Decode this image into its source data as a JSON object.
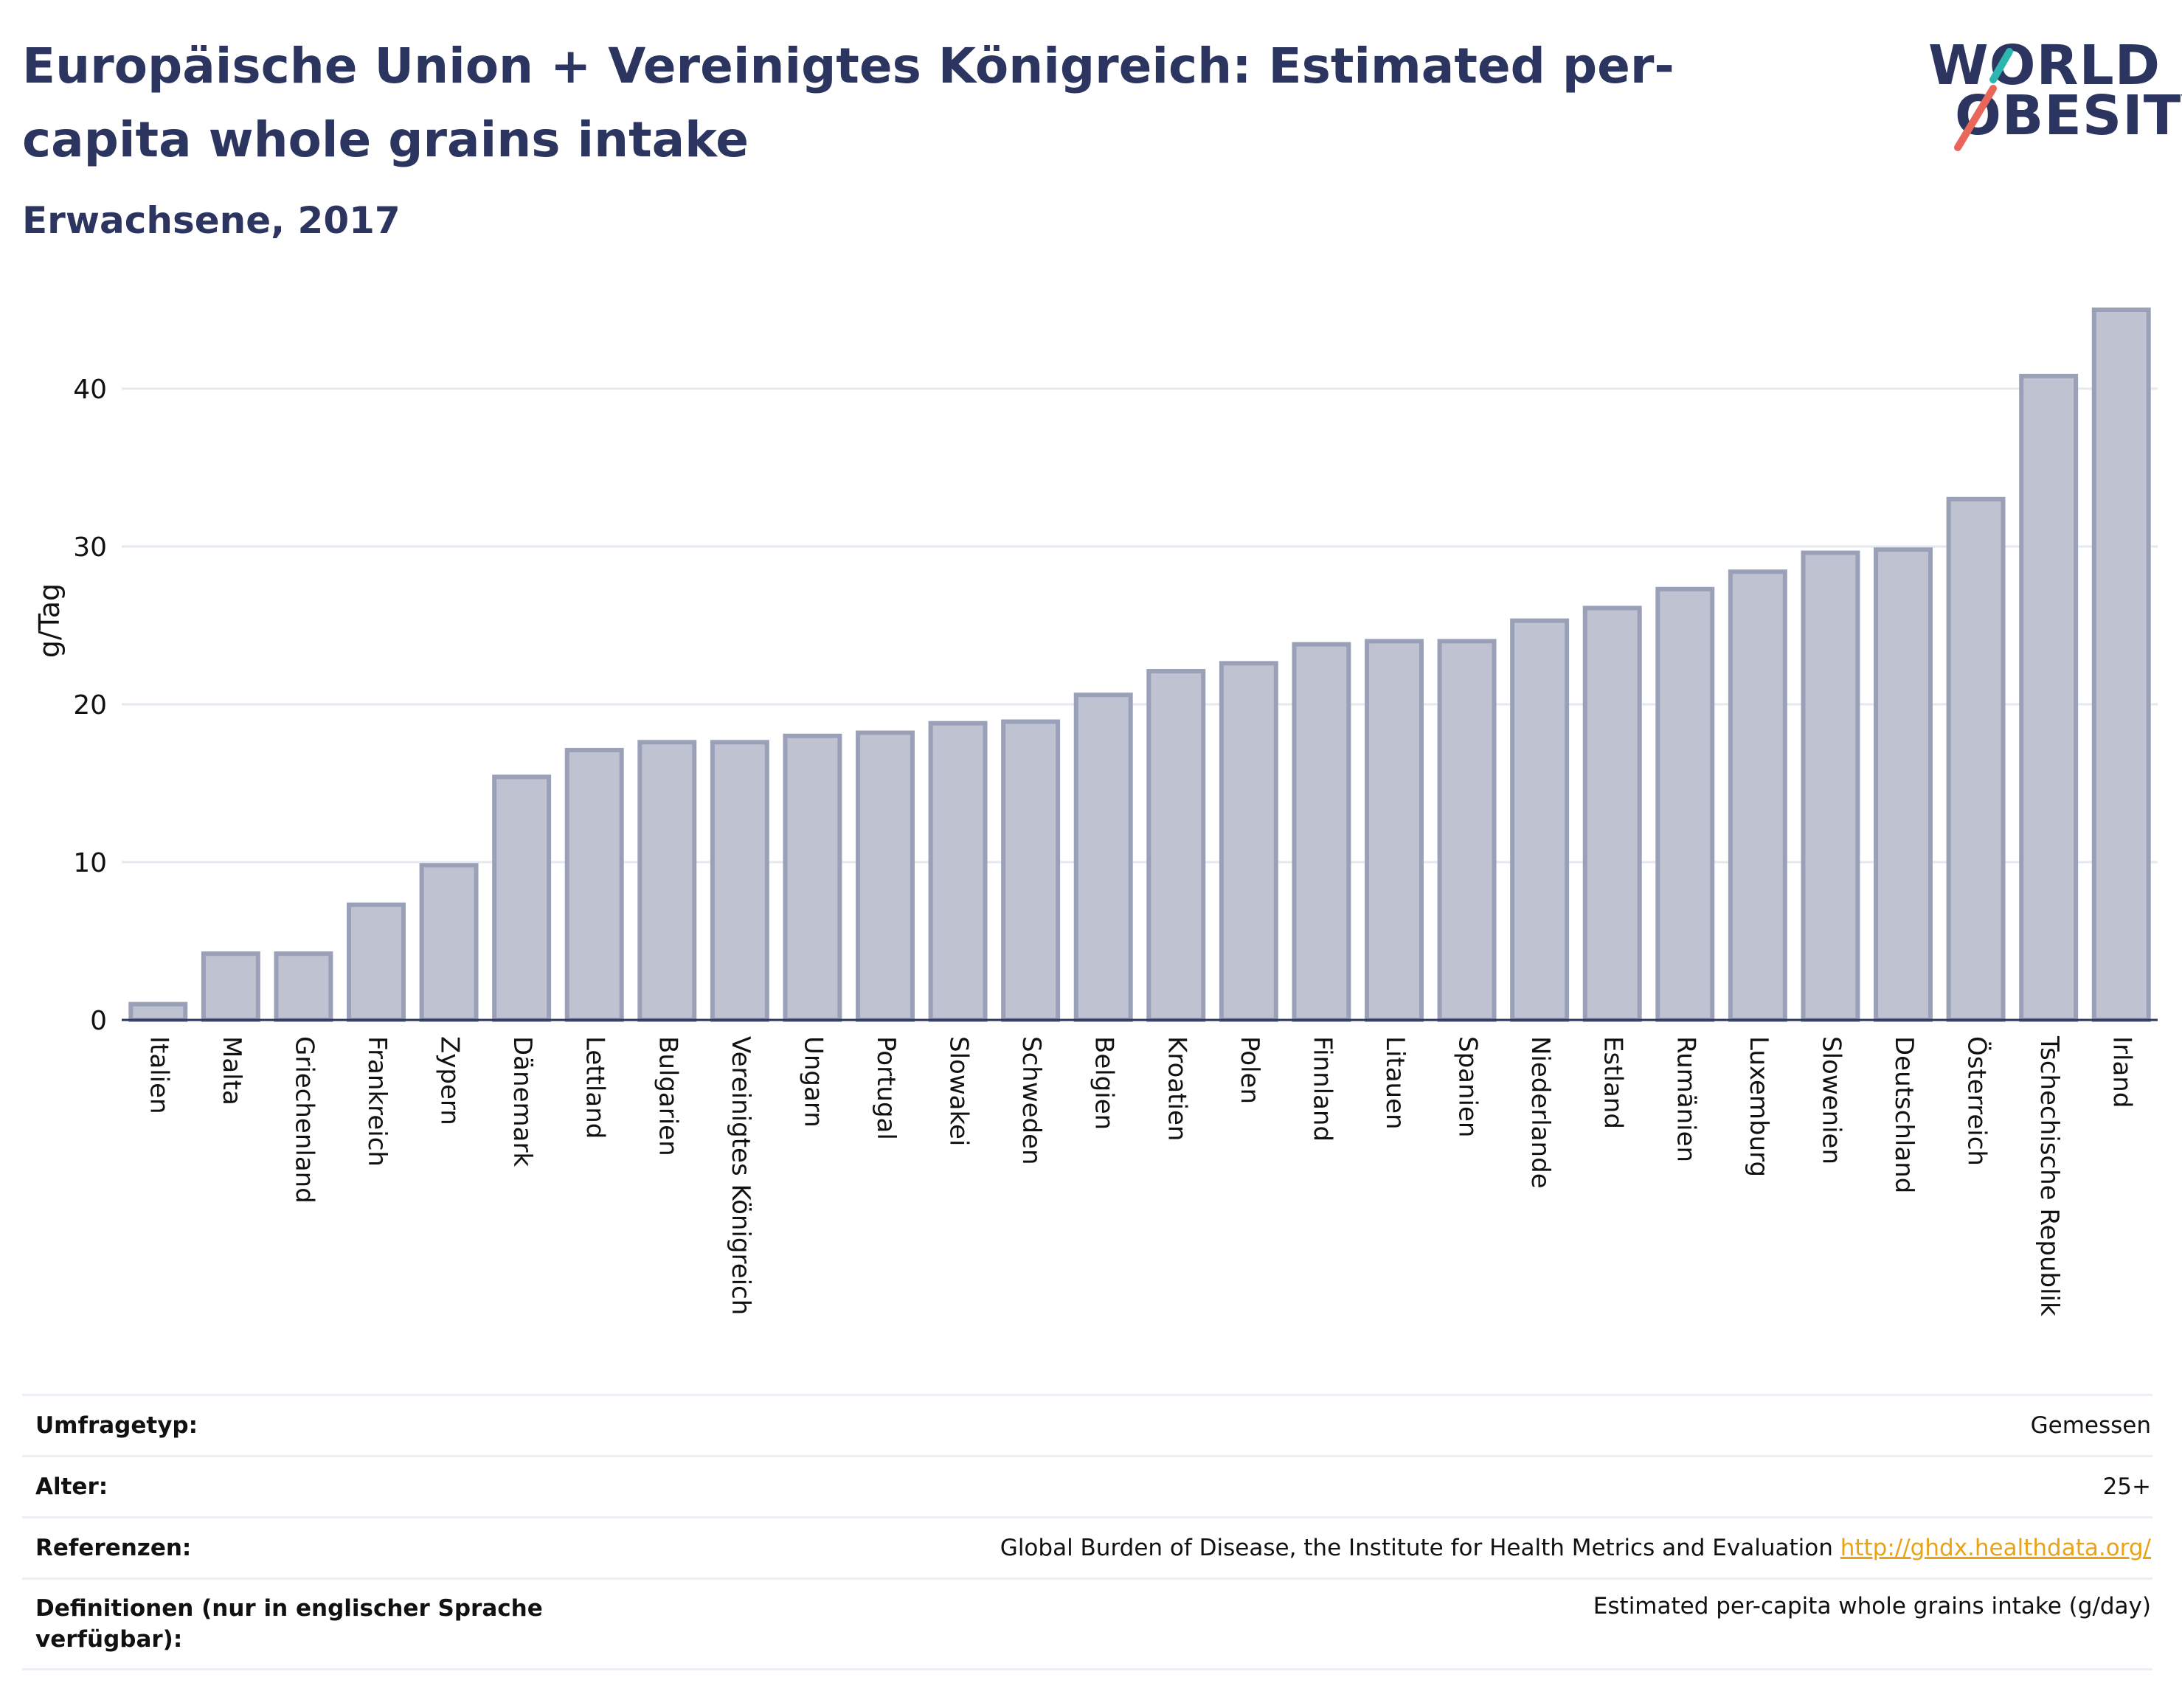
{
  "header": {
    "title": "Europäische Union + Vereinigtes Königreich: Estimated per-capita whole grains intake",
    "subtitle": "Erwachsene, 2017"
  },
  "logo": {
    "line1": "WORLD",
    "line2": "OBESITY",
    "accent_teal": "#2bb7b0",
    "accent_coral": "#e8675a"
  },
  "colors": {
    "bar_fill": "#bfc3d1",
    "bar_stroke": "#9aa0b8",
    "text": "#2b3560",
    "grid": "#e6e8ef",
    "link": "#e8a317"
  },
  "chart_data": {
    "type": "bar",
    "ylabel": "g/Tag",
    "xlabel": "",
    "ylim": [
      0,
      45
    ],
    "yticks": [
      0,
      10,
      20,
      30,
      40
    ],
    "grid": true,
    "categories": [
      "Italien",
      "Malta",
      "Griechenland",
      "Frankreich",
      "Zypern",
      "Dänemark",
      "Lettland",
      "Bulgarien",
      "Vereinigtes Königreich",
      "Ungarn",
      "Portugal",
      "Slowakei",
      "Schweden",
      "Belgien",
      "Kroatien",
      "Polen",
      "Finnland",
      "Litauen",
      "Spanien",
      "Niederlande",
      "Estland",
      "Rumänien",
      "Luxemburg",
      "Slowenien",
      "Deutschland",
      "Österreich",
      "Tschechische Republik",
      "Irland"
    ],
    "values": [
      1.0,
      4.2,
      4.2,
      7.3,
      9.8,
      15.4,
      17.1,
      17.6,
      17.6,
      18.0,
      18.2,
      18.8,
      18.9,
      20.6,
      22.1,
      22.6,
      23.8,
      24.0,
      24.0,
      25.3,
      26.1,
      27.3,
      28.4,
      29.6,
      29.8,
      33.0,
      40.8,
      45.0
    ]
  },
  "meta": [
    {
      "label": "Umfragetyp:",
      "value": "Gemessen"
    },
    {
      "label": "Alter:",
      "value": "25+"
    },
    {
      "label": "Referenzen:",
      "value": "Global Burden of Disease, the Institute for Health Metrics and Evaluation",
      "link": "http://ghdx.healthdata.org/"
    },
    {
      "label": "Definitionen (nur in englischer Sprache verfügbar):",
      "value": "Estimated per-capita whole grains intake (g/day)"
    }
  ]
}
